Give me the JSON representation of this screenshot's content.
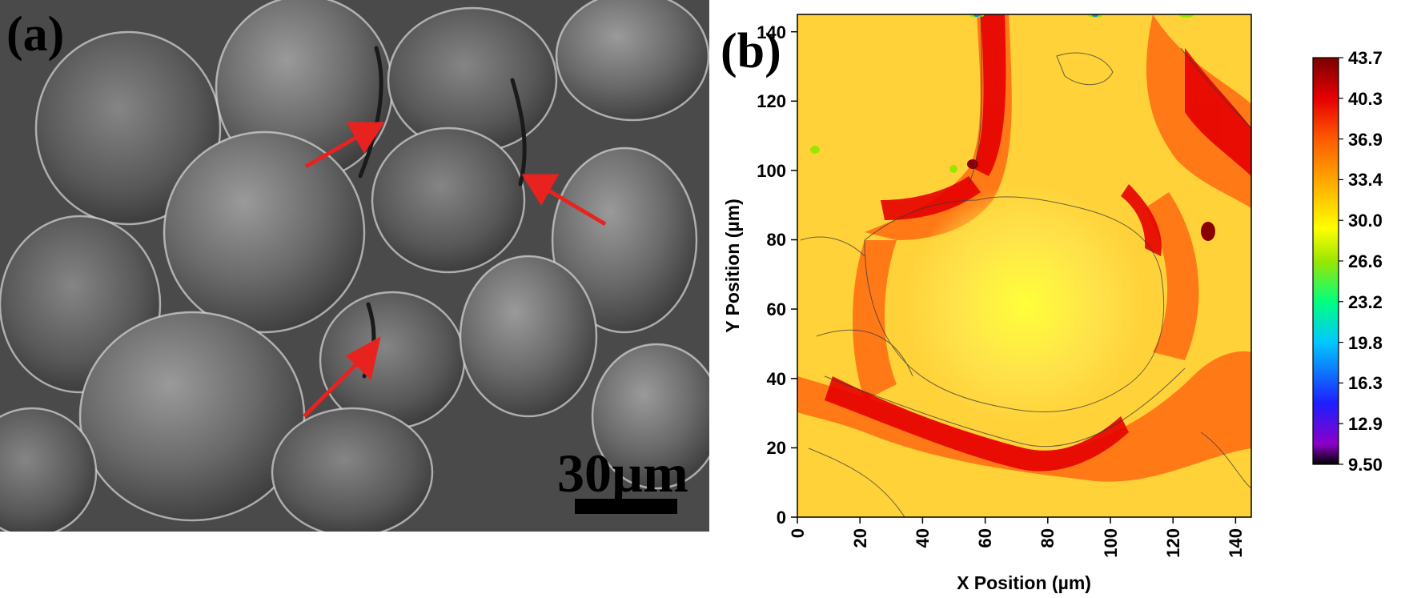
{
  "panel_a": {
    "label": "(a)",
    "scale_bar_label": "30µm",
    "arrow_color": "#e8231f"
  },
  "panel_b": {
    "label": "(b)",
    "xlabel": "X Position (µm)",
    "ylabel": "Y Position (µm)"
  },
  "chart_data": {
    "type": "heatmap",
    "title": "",
    "xlabel": "X Position (µm)",
    "ylabel": "Y Position (µm)",
    "xlim": [
      0,
      145
    ],
    "ylim": [
      0,
      145
    ],
    "x_ticks": [
      "0",
      "20",
      "40",
      "60",
      "80",
      "100",
      "120",
      "140"
    ],
    "y_ticks": [
      "0",
      "20",
      "40",
      "60",
      "80",
      "100",
      "120",
      "140"
    ],
    "colorbar": {
      "min": 9.5,
      "max": 43.7,
      "labels": [
        "43.7",
        "40.3",
        "36.9",
        "33.4",
        "30.0",
        "26.6",
        "23.2",
        "19.8",
        "16.3",
        "12.9",
        "9.50"
      ],
      "colors": [
        "#000000",
        "#8b00c8",
        "#1e1eff",
        "#00c8ff",
        "#00ff80",
        "#9be600",
        "#ffff00",
        "#ffb400",
        "#ff5a00",
        "#e60000",
        "#7a0000"
      ]
    },
    "grid": false,
    "legend_position": "right"
  }
}
